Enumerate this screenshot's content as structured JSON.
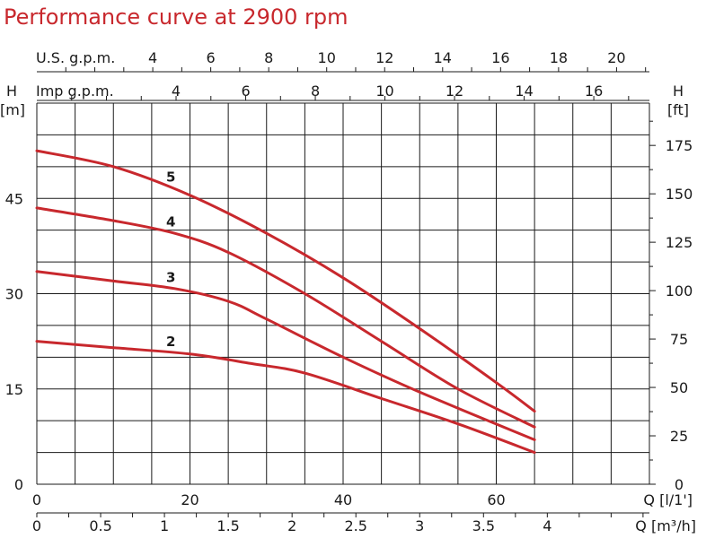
{
  "chart_data": {
    "type": "line",
    "title": "Performance curve at 2900 rpm",
    "colors": {
      "title": "#c8282d",
      "curve": "#c8282d",
      "grid": "#1a1a1a"
    },
    "axes": {
      "left": {
        "label_top": "H",
        "label_unit": "[m]",
        "range": [
          0,
          60
        ],
        "ticks": [
          0,
          15,
          30,
          45
        ]
      },
      "right": {
        "label_top": "H",
        "label_unit": "[ft]",
        "ticks": [
          0,
          25,
          50,
          75,
          100,
          125,
          150,
          175
        ]
      },
      "bottom_primary": {
        "label": "Q [l/1']",
        "range": [
          0,
          80
        ],
        "ticks": [
          0,
          20,
          40,
          60
        ]
      },
      "bottom_secondary": {
        "label": "Q [m³/h]",
        "ticks": [
          0,
          0.5,
          1,
          1.5,
          2,
          2.5,
          3,
          3.5,
          4
        ]
      },
      "top_us": {
        "label": "U.S. g.p.m.",
        "ticks": [
          4,
          6,
          8,
          10,
          12,
          14,
          16,
          18,
          20
        ]
      },
      "top_imp": {
        "label": "Imp g.p.m.",
        "ticks": [
          4,
          6,
          8,
          10,
          12,
          14,
          16
        ]
      }
    },
    "grid": true,
    "series": [
      {
        "name": "5",
        "x": [
          0,
          10,
          20,
          30,
          40,
          50,
          60,
          65
        ],
        "y": [
          52.5,
          50,
          45.5,
          39.5,
          32.5,
          24.5,
          16,
          11.5
        ]
      },
      {
        "name": "4",
        "x": [
          0,
          10,
          18,
          25,
          35,
          45,
          55,
          65
        ],
        "y": [
          43.5,
          41.5,
          39.5,
          36.5,
          30,
          22.5,
          15,
          9
        ]
      },
      {
        "name": "3",
        "x": [
          0,
          10,
          18,
          25,
          30,
          40,
          50,
          65
        ],
        "y": [
          33.5,
          32,
          30.8,
          28.8,
          26,
          20,
          14.5,
          7
        ]
      },
      {
        "name": "2",
        "x": [
          0,
          10,
          20,
          28,
          35,
          45,
          55,
          65
        ],
        "y": [
          22.5,
          21.5,
          20.5,
          19,
          17.5,
          13.5,
          9.5,
          5
        ]
      }
    ]
  }
}
